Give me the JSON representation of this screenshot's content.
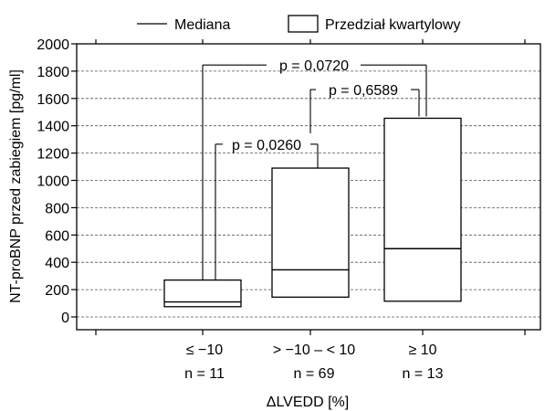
{
  "chart_data": {
    "type": "box",
    "ylabel": "NT-proBNP przed zabiegiem [pg/ml]",
    "xlabel": "ΔLVEDD [%]",
    "ylim": [
      -100,
      2000
    ],
    "yticks": [
      0,
      200,
      400,
      600,
      800,
      1000,
      1200,
      1400,
      1600,
      1800,
      2000
    ],
    "grid": "horizontal-dashed",
    "legend": {
      "placement": "top",
      "median_label": "Mediana",
      "box_label": "Przedział kwartylowy"
    },
    "groups": [
      {
        "label": "≤ −10",
        "n_label": "n = 11",
        "q1": 75,
        "median": 110,
        "q3": 270
      },
      {
        "label": "> −10 – < 10",
        "n_label": "n = 69",
        "q1": 145,
        "median": 345,
        "q3": 1090
      },
      {
        "label": "≥ 10",
        "n_label": "n = 13",
        "q1": 115,
        "median": 500,
        "q3": 1455
      }
    ],
    "comparisons": [
      {
        "groups": [
          0,
          1
        ],
        "text": "p = 0,0260",
        "y": 1265
      },
      {
        "groups": [
          1,
          2
        ],
        "text": "p = 0,6589",
        "y": 1665
      },
      {
        "groups": [
          0,
          2
        ],
        "text": "p = 0,0720",
        "y": 1845
      }
    ]
  }
}
